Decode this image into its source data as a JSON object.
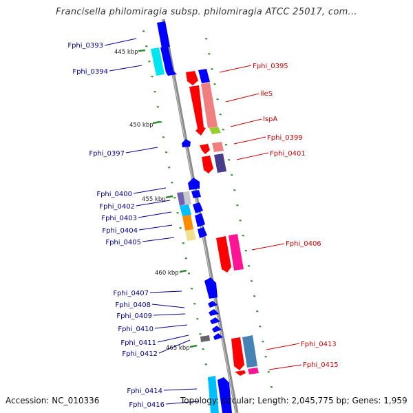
{
  "title": "Francisella philomiragia subsp. philomiragia ATCC 25017, com...",
  "footer": {
    "accession": "Accession: NC_010336",
    "info": "Topology: circular; Length: 2,045,775 bp; Genes: 1,959"
  },
  "colors": {
    "forward_gene": "#0000ff",
    "reverse_gene": "#ff0000",
    "forward_label": "#00008b",
    "reverse_label": "#cc0000",
    "backbone": "#8c8c8c",
    "tick": "#2e8b2e"
  },
  "kbp_markers": [
    {
      "label": "445 kbp"
    },
    {
      "label": "450 kbp"
    },
    {
      "label": "455 kbp"
    },
    {
      "label": "460 kbp"
    },
    {
      "label": "465 kbp"
    }
  ],
  "forward_labels": [
    {
      "text": "Fphi_0393"
    },
    {
      "text": "Fphi_0394"
    },
    {
      "text": "Fphi_0397"
    },
    {
      "text": "Fphi_0400"
    },
    {
      "text": "Fphi_0402"
    },
    {
      "text": "Fphi_0403"
    },
    {
      "text": "Fphi_0404"
    },
    {
      "text": "Fphi_0405"
    },
    {
      "text": "Fphi_0407"
    },
    {
      "text": "Fphi_0408"
    },
    {
      "text": "Fphi_0409"
    },
    {
      "text": "Fphi_0410"
    },
    {
      "text": "Fphi_0411"
    },
    {
      "text": "Fphi_0412"
    },
    {
      "text": "Fphi_0414"
    },
    {
      "text": "Fphi_0416"
    }
  ],
  "reverse_labels": [
    {
      "text": "Fphi_0395"
    },
    {
      "text": "ileS"
    },
    {
      "text": "lspA"
    },
    {
      "text": "Fphi_0399"
    },
    {
      "text": "Fphi_0401"
    },
    {
      "text": "Fphi_0406"
    },
    {
      "text": "Fphi_0413"
    },
    {
      "text": "Fphi_0415"
    }
  ]
}
